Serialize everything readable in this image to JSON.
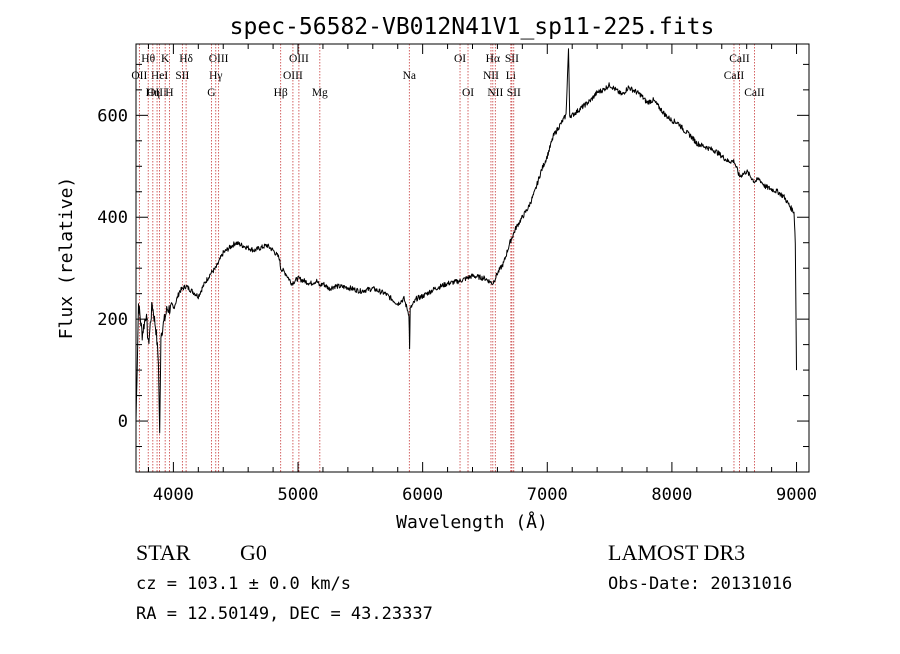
{
  "chart_data": {
    "type": "line",
    "title": "spec-56582-VB012N41V1_sp11-225.fits",
    "xlabel": "Wavelength (Å)",
    "ylabel": "Flux (relative)",
    "xlim": [
      3700,
      9100
    ],
    "ylim": [
      -100,
      740
    ],
    "x_ticks": [
      4000,
      5000,
      6000,
      7000,
      8000,
      9000
    ],
    "y_ticks": [
      0,
      200,
      400,
      600
    ],
    "x_tick_labels": [
      "4000",
      "5000",
      "6000",
      "7000",
      "8000",
      "9000"
    ],
    "y_tick_labels": [
      "0",
      "200",
      "400",
      "600"
    ],
    "series": [
      {
        "name": "flux",
        "x": [
          3700,
          3720,
          3750,
          3780,
          3800,
          3830,
          3860,
          3880,
          3890,
          3900,
          3920,
          3950,
          4000,
          4050,
          4100,
          4150,
          4200,
          4250,
          4300,
          4340,
          4400,
          4450,
          4500,
          4550,
          4600,
          4650,
          4700,
          4750,
          4800,
          4850,
          4861,
          4900,
          4950,
          5000,
          5050,
          5100,
          5150,
          5175,
          5200,
          5250,
          5300,
          5400,
          5500,
          5600,
          5700,
          5800,
          5850,
          5890,
          5895,
          5900,
          5950,
          6000,
          6100,
          6200,
          6300,
          6400,
          6500,
          6563,
          6600,
          6650,
          6700,
          6750,
          6800,
          6850,
          6900,
          6950,
          7000,
          7050,
          7100,
          7150,
          7170,
          7180,
          7200,
          7250,
          7300,
          7350,
          7400,
          7450,
          7500,
          7550,
          7600,
          7650,
          7700,
          7750,
          7800,
          7850,
          7900,
          7950,
          8000,
          8050,
          8100,
          8150,
          8200,
          8250,
          8300,
          8350,
          8400,
          8450,
          8500,
          8542,
          8600,
          8662,
          8700,
          8750,
          8800,
          8850,
          8900,
          8950,
          8980,
          8990,
          9000
        ],
        "y": [
          0,
          230,
          170,
          210,
          150,
          230,
          180,
          120,
          -30,
          170,
          190,
          220,
          220,
          255,
          265,
          255,
          245,
          270,
          290,
          300,
          330,
          340,
          350,
          345,
          340,
          335,
          340,
          345,
          335,
          320,
          300,
          290,
          270,
          280,
          275,
          270,
          275,
          265,
          270,
          260,
          265,
          262,
          255,
          260,
          250,
          230,
          240,
          210,
          140,
          220,
          240,
          245,
          260,
          270,
          275,
          285,
          280,
          270,
          290,
          310,
          350,
          380,
          400,
          420,
          450,
          490,
          520,
          560,
          580,
          600,
          730,
          600,
          600,
          610,
          620,
          630,
          645,
          650,
          660,
          650,
          640,
          655,
          648,
          640,
          625,
          630,
          615,
          600,
          590,
          585,
          570,
          560,
          545,
          540,
          535,
          530,
          520,
          510,
          510,
          480,
          490,
          470,
          475,
          460,
          455,
          450,
          440,
          420,
          410,
          350,
          100
        ]
      }
    ],
    "line_markers": [
      {
        "label": "Hθ",
        "x": 3798,
        "row": 1
      },
      {
        "label": "OII",
        "x": 3727,
        "row": 2
      },
      {
        "label": "OIII",
        "x": 3869,
        "row": 3
      },
      {
        "label": "K",
        "x": 3934,
        "row": 1
      },
      {
        "label": "HeI",
        "x": 3889,
        "row": 2
      },
      {
        "label": "Hη",
        "x": 3835,
        "row": 3
      },
      {
        "label": "H",
        "x": 3968,
        "row": 3
      },
      {
        "label": "SII",
        "x": 4072,
        "row": 2
      },
      {
        "label": "Hδ",
        "x": 4102,
        "row": 1
      },
      {
        "label": "OIII",
        "x": 4363,
        "row": 1
      },
      {
        "label": "Hγ",
        "x": 4340,
        "row": 2
      },
      {
        "label": "G",
        "x": 4305,
        "row": 3
      },
      {
        "label": "Hβ",
        "x": 4861,
        "row": 3
      },
      {
        "label": "OIII",
        "x": 5007,
        "row": 1
      },
      {
        "label": "OIII",
        "x": 4959,
        "row": 2
      },
      {
        "label": "Mg",
        "x": 5175,
        "row": 3
      },
      {
        "label": "Na",
        "x": 5893,
        "row": 2
      },
      {
        "label": "OI",
        "x": 6300,
        "row": 1
      },
      {
        "label": "OI",
        "x": 6364,
        "row": 3
      },
      {
        "label": "Hα",
        "x": 6563,
        "row": 1
      },
      {
        "label": "NII",
        "x": 6548,
        "row": 2
      },
      {
        "label": "NII",
        "x": 6583,
        "row": 3
      },
      {
        "label": "SII",
        "x": 6716,
        "row": 1
      },
      {
        "label": "Li",
        "x": 6708,
        "row": 2
      },
      {
        "label": "SII",
        "x": 6731,
        "row": 3
      },
      {
        "label": "CaII",
        "x": 8542,
        "row": 1
      },
      {
        "label": "CaII",
        "x": 8498,
        "row": 2
      },
      {
        "label": "CaII",
        "x": 8662,
        "row": 3
      }
    ],
    "grid": false,
    "legend": "none"
  },
  "info": {
    "object_class": "STAR",
    "subclass": "G0",
    "survey": "LAMOST DR3",
    "cz": "cz = 103.1 ± 0.0 km/s",
    "obs_date": "Obs-Date: 20131016",
    "coords": "RA =  12.50149, DEC =  43.23337"
  },
  "colors": {
    "line": "#000000",
    "marker": "#c83c3c",
    "background": "#ffffff"
  }
}
